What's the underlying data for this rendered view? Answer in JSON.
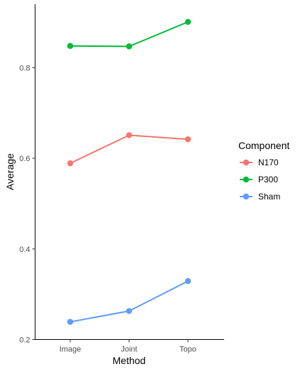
{
  "chart_data": {
    "type": "line",
    "title": "",
    "xlabel": "Method",
    "ylabel": "Average",
    "categories": [
      "Image",
      "Joint",
      "Topo"
    ],
    "ylim": [
      0.2,
      0.94
    ],
    "yticks": [
      0.2,
      0.4,
      0.6,
      0.8
    ],
    "ytick_labels": [
      "0.2",
      "0.4",
      "0.6",
      "0.8"
    ],
    "grid": false,
    "legend": {
      "title": "Component",
      "placement": "right"
    },
    "series": [
      {
        "name": "N170",
        "values": [
          0.589,
          0.651,
          0.642
        ],
        "color": "#F8766D"
      },
      {
        "name": "P300",
        "values": [
          0.848,
          0.847,
          0.901
        ],
        "color": "#00BA38"
      },
      {
        "name": "Sham",
        "values": [
          0.239,
          0.263,
          0.329
        ],
        "color": "#619CFF"
      }
    ]
  }
}
